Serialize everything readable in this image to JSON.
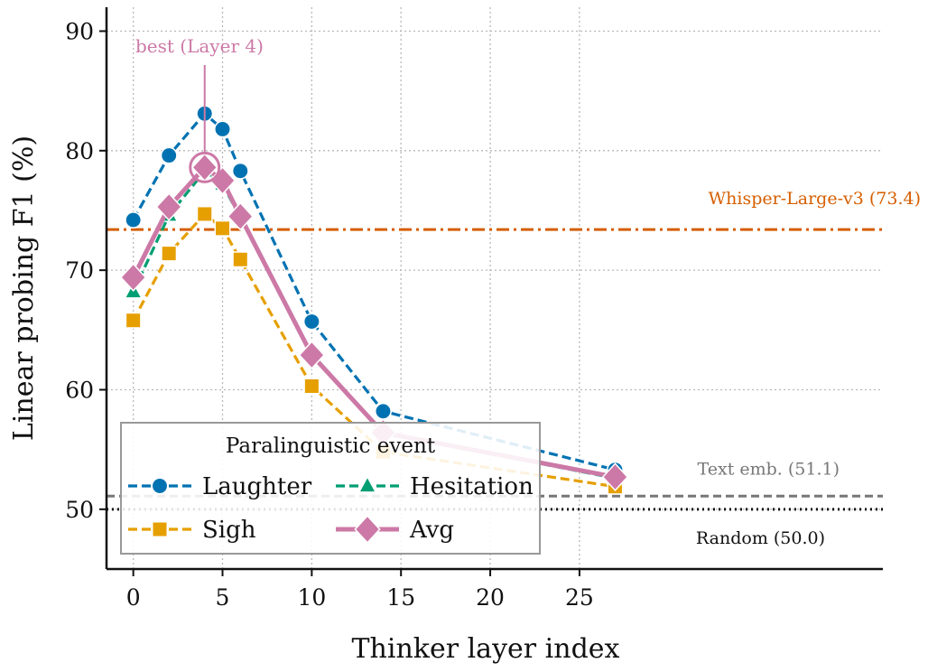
{
  "chart_data": {
    "type": "line",
    "xlabel": "Thinker layer index",
    "ylabel": "Linear probing F1 (%)",
    "xlim": [
      -1.5,
      42
    ],
    "ylim": [
      45,
      92
    ],
    "xticks": [
      0,
      5,
      10,
      15,
      20,
      25
    ],
    "yticks": [
      50,
      60,
      70,
      80,
      90
    ],
    "grid": true,
    "x": [
      0,
      2,
      4,
      5,
      6,
      10,
      14,
      27
    ],
    "series": [
      {
        "name": "Laughter",
        "color": "#0072B2",
        "marker": "circle",
        "style": "dashed",
        "values": [
          74.2,
          79.6,
          83.1,
          81.8,
          78.3,
          65.7,
          58.2,
          53.3
        ]
      },
      {
        "name": "Sigh",
        "color": "#E69F00",
        "marker": "square",
        "style": "dashed",
        "values": [
          65.8,
          71.4,
          74.7,
          73.5,
          70.9,
          60.3,
          54.8,
          51.9
        ]
      },
      {
        "name": "Hesitation",
        "color": "#009E73",
        "marker": "triangle",
        "style": "dashed",
        "values": [
          68.2,
          74.6,
          78.3,
          77.2,
          74.4,
          63.0,
          56.4,
          52.6
        ]
      },
      {
        "name": "Avg",
        "color": "#CC79A7",
        "marker": "diamond",
        "style": "solid",
        "values": [
          69.4,
          75.3,
          78.6,
          77.5,
          74.5,
          62.9,
          56.4,
          52.7
        ]
      }
    ],
    "legend": {
      "title": "Paralinguistic event",
      "placement": "lower-left",
      "columns": 2
    },
    "reference_lines": [
      {
        "label": "Whisper-Large-v3 (73.4)",
        "value": 73.4,
        "color": "#D55E00",
        "style": "dashdot"
      },
      {
        "label": "Text emb. (51.1)",
        "value": 51.1,
        "color": "#777777",
        "style": "dashed"
      },
      {
        "label": "Random (50.0)",
        "value": 50.0,
        "color": "#111111",
        "style": "dotted"
      }
    ],
    "annotation": {
      "text": "best (Layer 4)",
      "x": 4,
      "y": 78.6,
      "color": "#CC79A7"
    }
  }
}
